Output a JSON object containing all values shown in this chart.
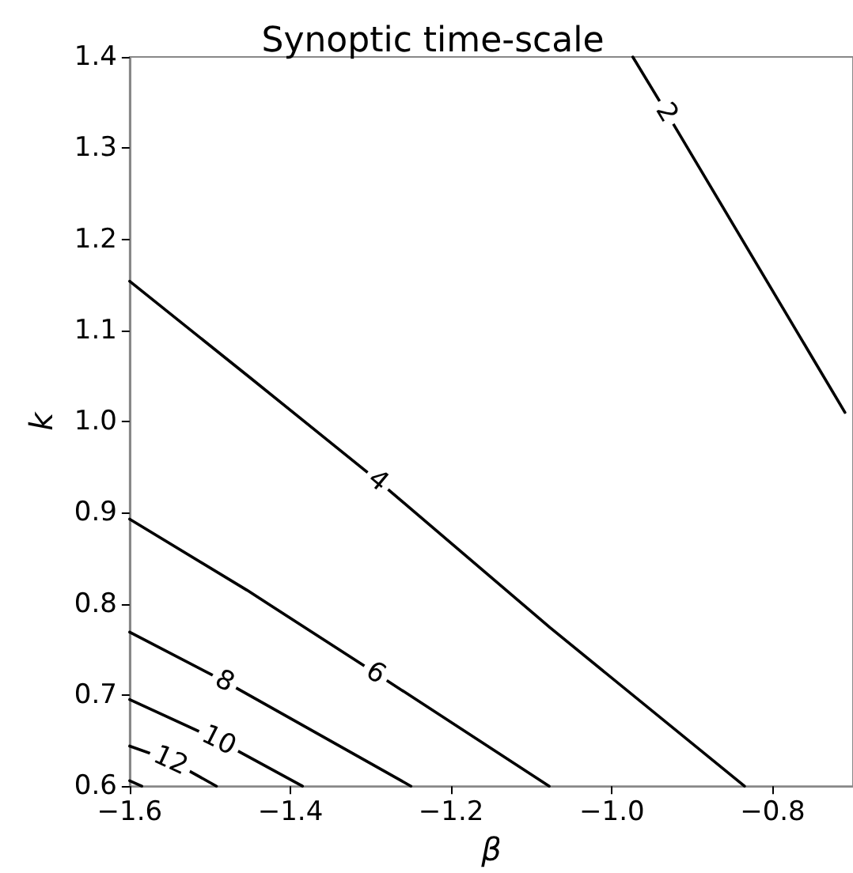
{
  "chart_data": {
    "type": "line",
    "title": "Synoptic time-scale",
    "xlabel": "β",
    "ylabel": "k",
    "xlim": [
      -1.6,
      -0.7
    ],
    "ylim": [
      0.6,
      1.4
    ],
    "xticks": [
      {
        "value": -1.6,
        "label": "−1.6"
      },
      {
        "value": -1.4,
        "label": "−1.4"
      },
      {
        "value": -1.2,
        "label": "−1.2"
      },
      {
        "value": -1.0,
        "label": "−1.0"
      },
      {
        "value": -0.8,
        "label": "−0.8"
      }
    ],
    "yticks": [
      0.6,
      0.7,
      0.8,
      0.9,
      {
        "value": 1.0,
        "label": "1.0"
      },
      1.1,
      1.2,
      1.3,
      1.4
    ],
    "grid": false,
    "legend": false,
    "marker": "none",
    "line_style": "solid",
    "series": [
      {
        "name": "2",
        "color": "#000000",
        "x": [
          -0.974,
          -0.932,
          -0.71
        ],
        "values": [
          1.4,
          1.339,
          1.01
        ]
      },
      {
        "name": "4",
        "color": "#000000",
        "x": [
          -1.6,
          -1.45,
          -1.291,
          -1.077,
          -0.835
        ],
        "values": [
          1.154,
          1.048,
          0.935,
          0.774,
          0.6
        ]
      },
      {
        "name": "6",
        "color": "#000000",
        "x": [
          -1.6,
          -1.454,
          -1.294,
          -1.078
        ],
        "values": [
          0.893,
          0.815,
          0.724,
          0.6
        ]
      },
      {
        "name": "8",
        "color": "#000000",
        "x": [
          -1.6,
          -1.482,
          -1.25
        ],
        "values": [
          0.769,
          0.715,
          0.6
        ]
      },
      {
        "name": "10",
        "color": "#000000",
        "x": [
          -1.6,
          -1.489,
          -1.385
        ],
        "values": [
          0.695,
          0.65,
          0.6
        ]
      },
      {
        "name": "12",
        "color": "#000000",
        "x": [
          -1.6,
          -1.549,
          -1.492
        ],
        "values": [
          0.644,
          0.628,
          0.6
        ]
      },
      {
        "color": "#000000",
        "x": [
          -1.6,
          -1.585
        ],
        "values": [
          0.606,
          0.6
        ]
      }
    ]
  }
}
